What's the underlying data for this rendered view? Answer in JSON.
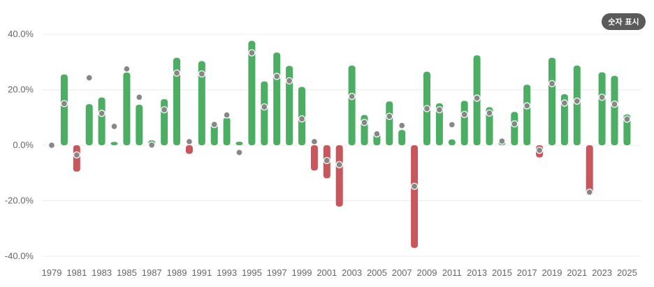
{
  "controls": {
    "show_values_label": "숫자 표시"
  },
  "colors": {
    "positive": "#4cae63",
    "negative": "#c8565c",
    "marker": "#878787",
    "grid": "#ececec",
    "text": "#666666"
  },
  "chart_data": {
    "type": "bar",
    "ylim": [
      -40,
      40
    ],
    "yticks": [
      40,
      20,
      0,
      -20,
      -40
    ],
    "ytick_labels": [
      "40.0%",
      "20.0%",
      "0.0%",
      "-20.0%",
      "-40.0%"
    ],
    "grid": true,
    "categories": [
      1979,
      1980,
      1981,
      1982,
      1983,
      1984,
      1985,
      1986,
      1987,
      1988,
      1989,
      1990,
      1991,
      1992,
      1993,
      1994,
      1995,
      1996,
      1997,
      1998,
      1999,
      2000,
      2001,
      2002,
      2003,
      2004,
      2005,
      2006,
      2007,
      2008,
      2009,
      2010,
      2011,
      2012,
      2013,
      2014,
      2015,
      2016,
      2017,
      2018,
      2019,
      2020,
      2021,
      2022,
      2023,
      2024,
      2025
    ],
    "xtick_labels": [
      "1979",
      "1981",
      "1983",
      "1985",
      "1987",
      "1989",
      "1991",
      "1993",
      "1995",
      "1997",
      "1999",
      "2001",
      "2003",
      "2005",
      "2007",
      "2009",
      "2011",
      "2013",
      "2015",
      "2017",
      "2019",
      "2021",
      "2023",
      "2025"
    ],
    "series": [
      {
        "values": [
          0,
          25.5,
          -9.5,
          14.8,
          17.2,
          1.2,
          26.2,
          14.6,
          1.8,
          16.6,
          31.5,
          -3.1,
          30.3,
          7.6,
          10.0,
          1.3,
          37.6,
          23.0,
          33.4,
          28.6,
          21.0,
          -9.1,
          -11.9,
          -22.1,
          28.7,
          10.9,
          4.9,
          15.8,
          5.5,
          -37.0,
          26.5,
          15.1,
          2.1,
          16.0,
          32.4,
          13.7,
          1.4,
          12.0,
          21.8,
          -4.4,
          31.5,
          18.4,
          28.7,
          -18.1,
          26.3,
          25.0,
          11.1
        ]
      },
      {
        "values": [
          0,
          15.0,
          -3.5,
          24.3,
          11.5,
          6.8,
          27.5,
          17.3,
          0.1,
          12.8,
          26.0,
          1.3,
          25.7,
          7.5,
          10.9,
          -2.6,
          33.3,
          13.8,
          24.8,
          23.2,
          9.5,
          1.3,
          -5.5,
          -7.0,
          17.6,
          8.2,
          4.1,
          10.4,
          7.1,
          -14.8,
          13.2,
          12.8,
          7.4,
          11.1,
          17.0,
          11.6,
          1.5,
          7.7,
          14.2,
          -1.8,
          22.2,
          15.2,
          15.9,
          -16.9,
          17.3,
          14.8,
          9.4
        ]
      }
    ]
  }
}
